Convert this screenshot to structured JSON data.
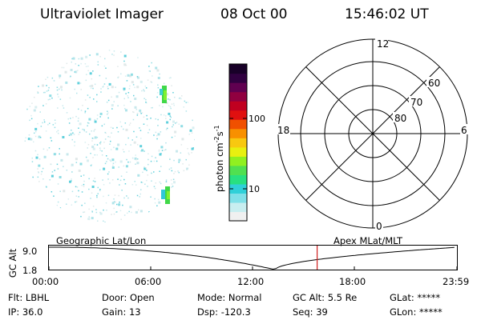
{
  "header": {
    "instrument": "Ultraviolet Imager",
    "date": "08 Oct 00",
    "time": "15:46:02 UT"
  },
  "colorbar": {
    "label": "photon cm⁻²s⁻¹",
    "label_base": "photon cm",
    "label_exp1": "-2",
    "label_mid": "s",
    "label_exp2": "-1",
    "ticks": [
      {
        "label": "100",
        "value": 100
      },
      {
        "label": "10",
        "value": 10
      }
    ],
    "colors": [
      "#f0f0f0",
      "#c8eef0",
      "#80e0e8",
      "#30d0d8",
      "#28e080",
      "#50e050",
      "#90f020",
      "#e8f010",
      "#f8c810",
      "#f89000",
      "#f05000",
      "#e01010",
      "#c00020",
      "#900040",
      "#600050",
      "#300040",
      "#180028"
    ]
  },
  "polar_grid": {
    "mlt_labels": {
      "top": "12",
      "left": "18",
      "right": "6",
      "bottom": "0"
    },
    "lat_labels": [
      "60",
      "70",
      "80"
    ]
  },
  "timeline": {
    "left_label": "Geographic Lat/Lon",
    "right_label": "Apex MLat/MLT",
    "y_axis_label": "GC Alt",
    "y_ticks": [
      "9.0",
      "1.8"
    ],
    "x_ticks": [
      "00:00",
      "06:00",
      "12:00",
      "18:00",
      "23:59"
    ],
    "marker_time": "15:46"
  },
  "footer": {
    "row1": [
      {
        "key": "Flt:",
        "value": "LBHL"
      },
      {
        "key": "Door:",
        "value": "Open"
      },
      {
        "key": "Mode:",
        "value": "Normal"
      },
      {
        "key": "GC Alt:",
        "value": "5.5 Re"
      },
      {
        "key": "GLat:",
        "value": "*****"
      }
    ],
    "row2": [
      {
        "key": "IP:",
        "value": "36.0"
      },
      {
        "key": "Gain:",
        "value": "13"
      },
      {
        "key": "Dsp:",
        "value": "-120.3"
      },
      {
        "key": "Seq:",
        "value": "39"
      },
      {
        "key": "GLon:",
        "value": "*****"
      }
    ]
  }
}
